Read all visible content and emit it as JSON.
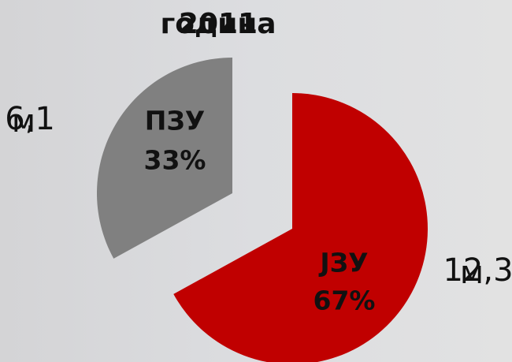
{
  "chart_data": {
    "type": "pie",
    "title": "2011",
    "subtitle": "година",
    "categories": [
      "ЈЗУ",
      "ПЗУ"
    ],
    "values": [
      67,
      33
    ],
    "value_labels": [
      "67%",
      "33%"
    ],
    "colors": [
      "#c00000",
      "#808080"
    ],
    "amounts": [
      "12,3",
      "6,1"
    ],
    "units": [
      "м",
      "м"
    ]
  }
}
